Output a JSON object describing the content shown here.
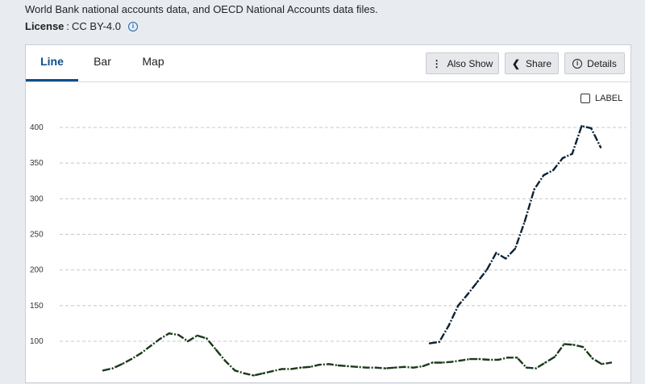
{
  "source": {
    "text": "World Bank national accounts data, and OECD National Accounts data files."
  },
  "license": {
    "label": "License",
    "separator": ":",
    "value": "CC BY-4.0"
  },
  "tabs": [
    {
      "label": "Line",
      "active": true
    },
    {
      "label": "Bar",
      "active": false
    },
    {
      "label": "Map",
      "active": false
    }
  ],
  "toolbar": {
    "also_show": "Also Show",
    "share": "Share",
    "details": "Details"
  },
  "label_toggle": {
    "text": "LABEL",
    "checked": false
  },
  "colors": {
    "accent": "#0b4f8a",
    "line_primary": "#0d2233",
    "line_secondary": "#1a3a1a"
  },
  "chart_data": {
    "type": "line",
    "title": "",
    "xlabel": "",
    "ylabel": "",
    "ylim_visible": [
      65,
      420
    ],
    "yticks": [
      100,
      150,
      200,
      250,
      300,
      350,
      400
    ],
    "grid": true,
    "legend": "none",
    "series": [
      {
        "values": [
          97,
          99,
          122,
          150,
          166,
          183,
          200,
          224,
          216,
          230,
          268,
          313,
          333,
          340,
          357,
          363,
          402,
          399,
          372
        ]
      },
      {
        "values": [
          59,
          62,
          68,
          75,
          83,
          93,
          103,
          111,
          109,
          100,
          108,
          104,
          88,
          72,
          59,
          55,
          52,
          55,
          58,
          61,
          61,
          63,
          64,
          67,
          68,
          66,
          65,
          64,
          63,
          63,
          62,
          63,
          64,
          63,
          65,
          70,
          70,
          71,
          73,
          75,
          75,
          74,
          74,
          77,
          77,
          63,
          62,
          70,
          78,
          96,
          95,
          92,
          76,
          68,
          70
        ]
      }
    ]
  }
}
